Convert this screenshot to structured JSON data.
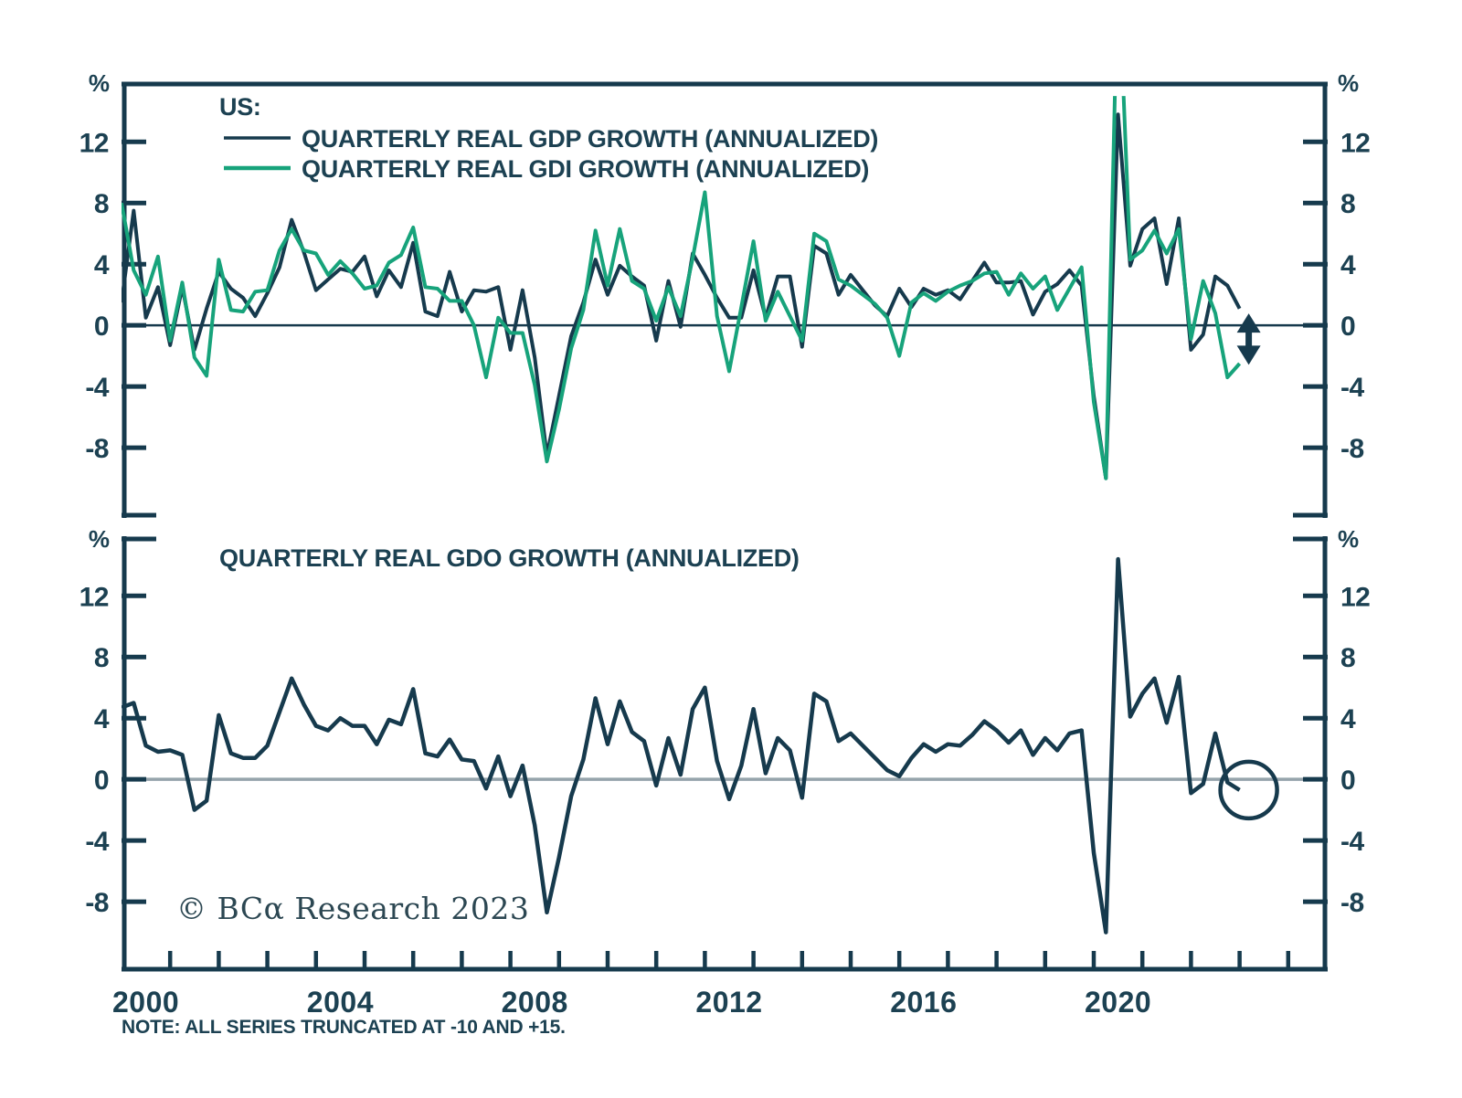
{
  "legend": {
    "country": "US:",
    "series": [
      {
        "label": "QUARTERLY REAL GDP GROWTH (ANNUALIZED)"
      },
      {
        "label": "QUARTERLY REAL GDI GROWTH (ANNUALIZED)"
      }
    ]
  },
  "note": "NOTE: ALL SERIES TRUNCATED AT -10 AND +15.",
  "copyright": "© BCα Research 2023",
  "colors": {
    "dark_navy": "#163a4d",
    "green": "#17a37b",
    "text": "#1c4152",
    "zero_line_gray": "#95a3ab",
    "background": "#ffffff"
  },
  "axis": {
    "unit": "%",
    "tick_values": [
      12,
      8,
      4,
      0,
      -4,
      -8
    ],
    "year_labels": [
      "2000",
      "2004",
      "2008",
      "2012",
      "2016",
      "2020"
    ],
    "truncation": {
      "min": -10,
      "max": 15
    }
  },
  "chart_data": [
    {
      "type": "line",
      "panel": "top",
      "title": "US: QUARTERLY REAL GDP GROWTH vs QUARTERLY REAL GDI GROWTH (ANNUALIZED)",
      "x_start": "2000Q1",
      "x_end": "2023Q1",
      "x_frequency": "quarterly",
      "ylabel": "%",
      "ylim": [
        -10,
        15
      ],
      "series": [
        {
          "name": "QUARTERLY REAL GDP GROWTH (ANNUALIZED)",
          "color": "#163a4d",
          "values": [
            1.5,
            7.5,
            0.5,
            2.5,
            -1.3,
            2.5,
            -1.6,
            1.1,
            3.5,
            2.4,
            1.8,
            0.6,
            2.1,
            3.8,
            6.9,
            4.8,
            2.3,
            3.0,
            3.7,
            3.5,
            4.5,
            1.9,
            3.6,
            2.5,
            5.4,
            0.9,
            0.6,
            3.5,
            0.9,
            2.3,
            2.2,
            2.5,
            -1.6,
            2.3,
            -2.1,
            -8.5,
            -4.6,
            -0.7,
            1.5,
            4.3,
            2.0,
            3.9,
            3.2,
            2.6,
            -1.0,
            2.9,
            -0.1,
            4.7,
            3.3,
            1.8,
            0.5,
            0.5,
            3.6,
            0.5,
            3.2,
            3.2,
            -1.4,
            5.2,
            4.7,
            2.0,
            3.3,
            2.3,
            1.3,
            0.6,
            2.4,
            1.2,
            2.4,
            2.0,
            2.3,
            1.7,
            2.9,
            4.1,
            2.8,
            2.8,
            2.9,
            0.7,
            2.2,
            2.7,
            3.6,
            2.6,
            -4.6,
            -10.0,
            13.8,
            3.9,
            6.3,
            7.0,
            2.7,
            7.0,
            -1.6,
            -0.6,
            3.2,
            2.6,
            1.1
          ]
        },
        {
          "name": "QUARTERLY REAL GDI GROWTH (ANNUALIZED)",
          "color": "#17a37b",
          "values": [
            8.0,
            3.6,
            2.0,
            4.5,
            -1.0,
            2.8,
            -2.1,
            -3.3,
            4.3,
            1.0,
            0.9,
            2.2,
            2.3,
            4.9,
            6.3,
            4.9,
            4.7,
            3.3,
            4.2,
            3.4,
            2.4,
            2.6,
            4.1,
            4.6,
            6.4,
            2.5,
            2.4,
            1.6,
            1.6,
            0.0,
            -3.4,
            0.5,
            -0.5,
            -0.5,
            -3.9,
            -8.9,
            -5.5,
            -1.5,
            1.0,
            6.2,
            2.6,
            6.3,
            2.9,
            2.4,
            0.3,
            2.5,
            0.6,
            4.4,
            8.7,
            0.6,
            -3.0,
            1.2,
            5.5,
            0.3,
            2.2,
            0.6,
            -1.0,
            6.0,
            5.5,
            3.0,
            2.6,
            2.0,
            1.4,
            0.5,
            -2.0,
            1.5,
            2.1,
            1.6,
            2.2,
            2.6,
            2.9,
            3.4,
            3.5,
            2.0,
            3.4,
            2.4,
            3.2,
            1.0,
            2.4,
            3.8,
            -5.0,
            -10.0,
            15.0,
            4.3,
            4.9,
            6.2,
            4.7,
            6.3,
            -0.9,
            2.9,
            0.8,
            -3.4,
            -2.5
          ]
        }
      ],
      "annotations": [
        {
          "type": "double_arrow",
          "quarter": "2023Q1",
          "y_top": 0.6,
          "y_bottom": -2.4
        }
      ]
    },
    {
      "type": "line",
      "panel": "bottom",
      "title": "QUARTERLY REAL GDO GROWTH (ANNUALIZED)",
      "x_start": "2000Q1",
      "x_end": "2023Q1",
      "x_frequency": "quarterly",
      "ylabel": "%",
      "ylim": [
        -10,
        15
      ],
      "series": [
        {
          "name": "QUARTERLY REAL GDO GROWTH (ANNUALIZED)",
          "color": "#163a4d",
          "values": [
            4.7,
            5.0,
            2.2,
            1.8,
            1.9,
            1.6,
            -2.0,
            -1.4,
            4.2,
            1.7,
            1.4,
            1.4,
            2.2,
            4.4,
            6.6,
            4.9,
            3.5,
            3.2,
            4.0,
            3.5,
            3.5,
            2.3,
            3.9,
            3.6,
            5.9,
            1.7,
            1.5,
            2.6,
            1.3,
            1.2,
            -0.6,
            1.5,
            -1.1,
            0.9,
            -3.0,
            -8.7,
            -5.1,
            -1.1,
            1.3,
            5.3,
            2.3,
            5.1,
            3.1,
            2.5,
            -0.4,
            2.7,
            0.3,
            4.6,
            6.0,
            1.2,
            -1.3,
            0.9,
            4.6,
            0.4,
            2.7,
            1.9,
            -1.2,
            5.6,
            5.1,
            2.5,
            3.0,
            2.2,
            1.4,
            0.6,
            0.2,
            1.4,
            2.3,
            1.8,
            2.3,
            2.2,
            2.9,
            3.8,
            3.2,
            2.4,
            3.2,
            1.6,
            2.7,
            1.9,
            3.0,
            3.2,
            -4.8,
            -10.0,
            14.4,
            4.1,
            5.6,
            6.6,
            3.7,
            6.7,
            -0.9,
            -0.3,
            3.0,
            -0.2,
            -0.7
          ]
        }
      ],
      "annotations": [
        {
          "type": "circle",
          "quarter": "2023Q1",
          "y": -0.7
        }
      ]
    }
  ]
}
